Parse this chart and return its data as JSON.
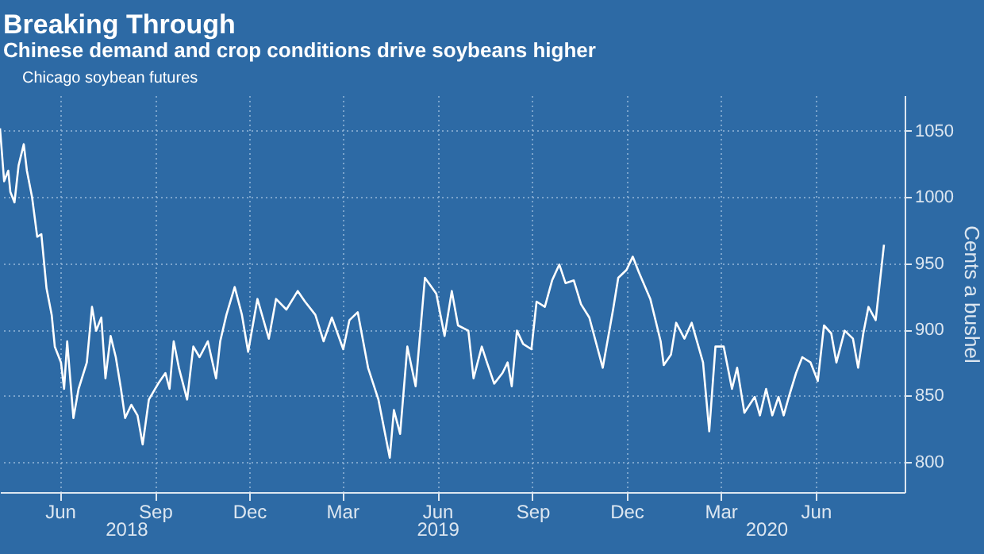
{
  "chart_data": {
    "type": "line",
    "title": "Breaking Through",
    "subtitle": "Chinese demand and crop conditions drive soybeans higher",
    "ylabel": "Cents a bushel",
    "x": [
      "2018-04-04",
      "2018-04-08",
      "2018-04-12",
      "2018-04-14",
      "2018-04-18",
      "2018-04-22",
      "2018-04-27",
      "2018-04-30",
      "2018-05-05",
      "2018-05-10",
      "2018-05-14",
      "2018-05-19",
      "2018-05-24",
      "2018-05-27",
      "2018-06-02",
      "2018-06-05",
      "2018-06-08",
      "2018-06-14",
      "2018-06-19",
      "2018-06-27",
      "2018-07-02",
      "2018-07-06",
      "2018-07-11",
      "2018-07-15",
      "2018-07-20",
      "2018-07-25",
      "2018-07-30",
      "2018-08-03",
      "2018-08-09",
      "2018-08-15",
      "2018-08-20",
      "2018-08-26",
      "2018-09-04",
      "2018-09-11",
      "2018-09-15",
      "2018-09-19",
      "2018-09-24",
      "2018-10-02",
      "2018-10-08",
      "2018-10-14",
      "2018-10-22",
      "2018-10-30",
      "2018-11-03",
      "2018-11-09",
      "2018-11-17",
      "2018-11-24",
      "2018-11-30",
      "2018-12-09",
      "2018-12-20",
      "2018-12-27",
      "2019-01-06",
      "2019-01-17",
      "2019-01-24",
      "2019-02-03",
      "2019-02-11",
      "2019-02-19",
      "2019-03-02",
      "2019-03-08",
      "2019-03-16",
      "2019-03-26",
      "2019-04-05",
      "2019-04-16",
      "2019-04-20",
      "2019-04-26",
      "2019-05-03",
      "2019-05-11",
      "2019-05-20",
      "2019-05-31",
      "2019-06-08",
      "2019-06-15",
      "2019-06-21",
      "2019-07-01",
      "2019-07-06",
      "2019-07-14",
      "2019-07-19",
      "2019-07-26",
      "2019-08-03",
      "2019-08-08",
      "2019-08-12",
      "2019-08-17",
      "2019-08-23",
      "2019-08-31",
      "2019-09-05",
      "2019-09-13",
      "2019-09-20",
      "2019-09-27",
      "2019-10-03",
      "2019-10-11",
      "2019-10-18",
      "2019-10-26",
      "2019-11-08",
      "2019-11-18",
      "2019-11-23",
      "2019-12-01",
      "2019-12-07",
      "2019-12-13",
      "2019-12-24",
      "2020-01-03",
      "2020-01-06",
      "2020-01-13",
      "2020-01-18",
      "2020-01-26",
      "2020-02-02",
      "2020-02-13",
      "2020-02-19",
      "2020-02-25",
      "2020-03-04",
      "2020-03-12",
      "2020-03-17",
      "2020-03-24",
      "2020-04-03",
      "2020-04-08",
      "2020-04-14",
      "2020-04-20",
      "2020-04-26",
      "2020-05-01",
      "2020-05-06",
      "2020-05-13",
      "2020-05-19",
      "2020-05-27",
      "2020-06-03",
      "2020-06-09",
      "2020-06-16",
      "2020-06-21",
      "2020-06-29",
      "2020-07-07",
      "2020-07-12",
      "2020-07-17",
      "2020-07-22",
      "2020-07-29",
      "2020-08-06"
    ],
    "series": [
      {
        "name": "Chicago soybean futures",
        "color": "#ffffff",
        "values": [
          1052,
          1012,
          1020,
          1004,
          996,
          1024,
          1040,
          1020,
          1000,
          970,
          972,
          931,
          911,
          887,
          875,
          855,
          891,
          833,
          855,
          875,
          917,
          899,
          909,
          863,
          895,
          879,
          855,
          833,
          843,
          835,
          813,
          847,
          859,
          867,
          855,
          891,
          871,
          847,
          887,
          879,
          891,
          863,
          891,
          911,
          932,
          911,
          883,
          923,
          893,
          923,
          915,
          929,
          921,
          911,
          891,
          909,
          885,
          907,
          913,
          871,
          847,
          803,
          839,
          821,
          887,
          857,
          939,
          927,
          895,
          929,
          903,
          899,
          863,
          887,
          875,
          859,
          867,
          875,
          857,
          899,
          889,
          885,
          921,
          917,
          937,
          949,
          935,
          937,
          919,
          909,
          871,
          915,
          939,
          945,
          955,
          943,
          923,
          891,
          873,
          881,
          905,
          893,
          905,
          875,
          823,
          887,
          887,
          855,
          871,
          837,
          849,
          835,
          855,
          835,
          849,
          835,
          849,
          867,
          879,
          875,
          861,
          903,
          897,
          875,
          899,
          893,
          871,
          897,
          917,
          907,
          964
        ]
      }
    ],
    "xlim": [
      "2018-04-04",
      "2020-08-26"
    ],
    "xticks": [
      {
        "value": "2018-06-01",
        "label": "Jun"
      },
      {
        "value": "2018-09-01",
        "label": "Sep"
      },
      {
        "value": "2018-12-01",
        "label": "Dec"
      },
      {
        "value": "2019-03-01",
        "label": "Mar"
      },
      {
        "value": "2019-06-01",
        "label": "Jun"
      },
      {
        "value": "2019-09-01",
        "label": "Sep"
      },
      {
        "value": "2019-12-01",
        "label": "Dec"
      },
      {
        "value": "2020-03-01",
        "label": "Mar"
      },
      {
        "value": "2020-06-01",
        "label": "Jun"
      }
    ],
    "x2lim": [
      "2018-04-04",
      "2020-08-26"
    ],
    "x2ticks": [
      {
        "value": "2018-08-04",
        "label": "2018"
      },
      {
        "value": "2019-06-01",
        "label": "2019"
      },
      {
        "value": "2020-04-14",
        "label": "2020"
      }
    ],
    "ylim": [
      777,
      1077
    ],
    "yticks": [
      800,
      850,
      900,
      950,
      1000,
      1050
    ],
    "grid": true,
    "legend": "top left",
    "line_style": "solid",
    "marker": "none"
  }
}
